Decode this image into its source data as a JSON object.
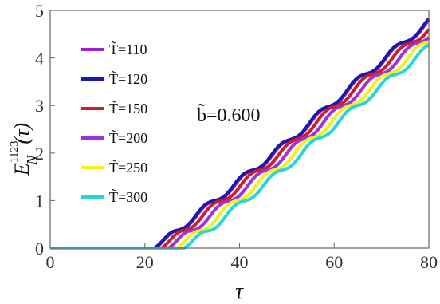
{
  "chart_data": {
    "type": "line",
    "xlabel": "τ",
    "ylabel": "E_N^{1123}(τ)",
    "ylabel_main": "E",
    "ylabel_sup": "1123",
    "ylabel_sub": "N",
    "ylabel_arg": "(τ)",
    "xlim": [
      0,
      80
    ],
    "ylim": [
      0,
      5
    ],
    "xticks": [
      0,
      20,
      40,
      60,
      80
    ],
    "yticks": [
      0,
      1,
      2,
      3,
      4,
      5
    ],
    "grid": false,
    "legend_position": "top-left",
    "annotation": "b̃=0.600",
    "series": [
      {
        "name": "T̃=110",
        "color": "#9b1fd6",
        "onset": 22.2,
        "values_at_x": {
          "x": [
            0,
            22.2,
            35,
            50,
            65,
            80
          ],
          "y": [
            0,
            0,
            1.0,
            2.2,
            3.5,
            4.75
          ]
        }
      },
      {
        "name": "T̃=120",
        "color": "#1a1aa8",
        "onset": 22.0,
        "values_at_x": {
          "x": [
            0,
            22.0,
            35,
            50,
            65,
            80
          ],
          "y": [
            0,
            0,
            1.02,
            2.22,
            3.52,
            4.77
          ]
        }
      },
      {
        "name": "T̃=150",
        "color": "#d01c2a",
        "onset": 23.5,
        "values_at_x": {
          "x": [
            0,
            23.5,
            35,
            50,
            65,
            80
          ],
          "y": [
            0,
            0,
            0.9,
            2.1,
            3.4,
            4.62
          ]
        }
      },
      {
        "name": "T̃=200",
        "color": "#a030d8",
        "onset": 25.0,
        "values_at_x": {
          "x": [
            0,
            25.0,
            35,
            50,
            65,
            80
          ],
          "y": [
            0,
            0,
            0.77,
            1.98,
            3.27,
            4.5
          ]
        }
      },
      {
        "name": "T̃=250",
        "color": "#f2f21a",
        "onset": 26.8,
        "values_at_x": {
          "x": [
            0,
            26.8,
            35,
            50,
            65,
            80
          ],
          "y": [
            0,
            0,
            0.63,
            1.85,
            3.13,
            4.36
          ]
        }
      },
      {
        "name": "T̃=300",
        "color": "#28d6d6",
        "onset": 28.3,
        "values_at_x": {
          "x": [
            0,
            28.3,
            35,
            50,
            65,
            80
          ],
          "y": [
            0,
            0,
            0.5,
            1.72,
            3.0,
            4.22
          ]
        }
      }
    ]
  }
}
